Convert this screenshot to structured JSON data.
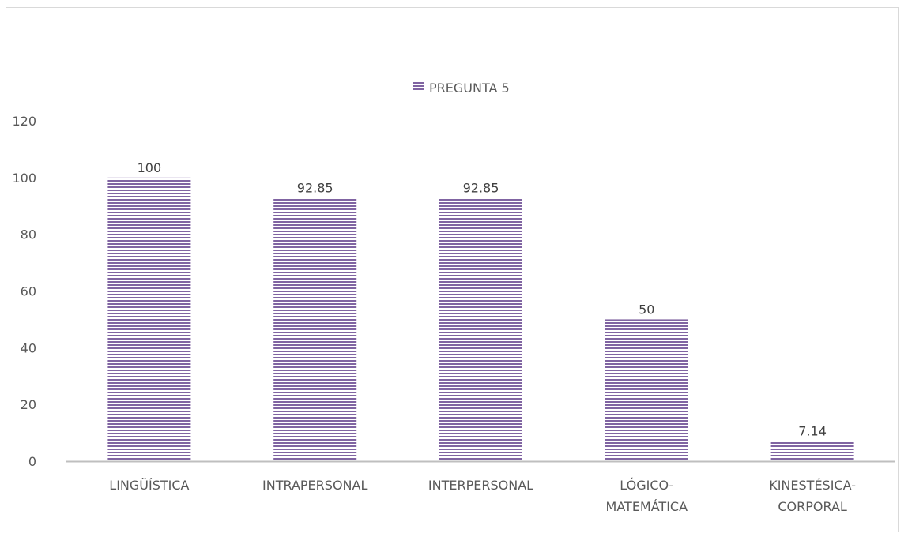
{
  "chart_data": {
    "type": "bar",
    "categories": [
      [
        "LINGÜÍSTICA"
      ],
      [
        "INTRAPERSONAL"
      ],
      [
        "INTERPERSONAL"
      ],
      [
        "LÓGICO-",
        "MATEMÁTICA"
      ],
      [
        "KINESTÉSICA-",
        "CORPORAL"
      ]
    ],
    "series": [
      {
        "name": "PREGUNTA 5",
        "values": [
          100,
          92.85,
          92.85,
          50,
          7.14
        ],
        "color": "#8064a2"
      }
    ],
    "data_labels": [
      "100",
      "92.85",
      "92.85",
      "50",
      "7.14"
    ],
    "y_ticks": [
      "0",
      "20",
      "40",
      "60",
      "80",
      "100",
      "120"
    ],
    "ylim": [
      0,
      120
    ],
    "grid": false,
    "legend": "top-center",
    "pattern": "horizontal-stripes"
  }
}
